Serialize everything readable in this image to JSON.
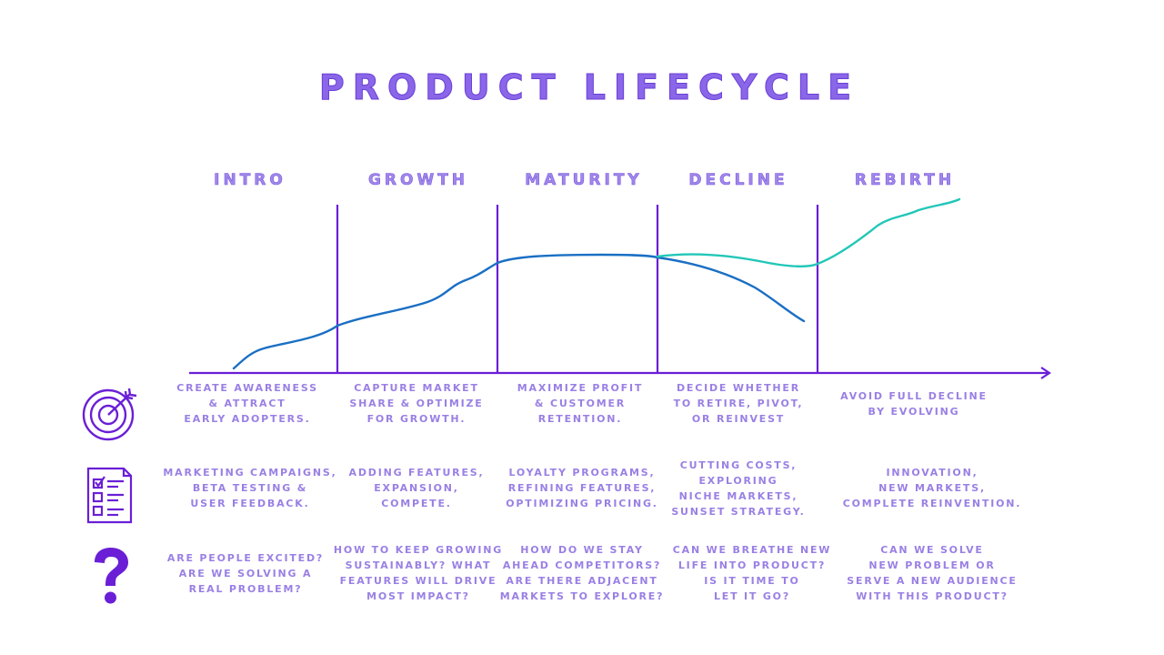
{
  "title": "PRODUCT LIFECYCLE",
  "colors": {
    "accent": "#6a1fd6",
    "text": "#9a80e4",
    "main_curve": "#1a6fc4",
    "rebirth_curve": "#22c7b8"
  },
  "stages": [
    {
      "name": "INTRO",
      "goal": "CREATE AWARENESS\n& ATTRACT\nEARLY ADOPTERS.",
      "actions": "MARKETING CAMPAIGNS,\nBETA TESTING &\nUSER FEEDBACK.",
      "questions": "ARE PEOPLE EXCITED?\nARE WE SOLVING A\nREAL PROBLEM?"
    },
    {
      "name": "GROWTH",
      "goal": "CAPTURE MARKET\nSHARE & OPTIMIZE\nFOR GROWTH.",
      "actions": "ADDING FEATURES,\nEXPANSION,\nCOMPETE.",
      "questions": "HOW TO KEEP GROWING\nSUSTAINABLY? WHAT\nFEATURES WILL DRIVE\nMOST IMPACT?"
    },
    {
      "name": "MATURITY",
      "goal": "MAXIMIZE PROFIT\n& CUSTOMER\nRETENTION.",
      "actions": "LOYALTY PROGRAMS,\nREFINING FEATURES,\nOPTIMIZING PRICING.",
      "questions": "HOW DO WE STAY\nAHEAD COMPETITORS?\nARE THERE ADJACENT\nMARKETS TO EXPLORE?"
    },
    {
      "name": "DECLINE",
      "goal": "DECIDE WHETHER\nTO RETIRE, PIVOT,\nOR REINVEST",
      "actions": "CUTTING COSTS,\nEXPLORING\nNICHE MARKETS,\nSUNSET STRATEGY.",
      "questions": "CAN WE BREATHE NEW\nLIFE INTO PRODUCT?\nIS IT TIME TO\nLET IT GO?"
    },
    {
      "name": "REBIRTH",
      "goal": "AVOID FULL DECLINE\nBY EVOLVING",
      "actions": "INNOVATION,\nNEW MARKETS,\nCOMPLETE REINVENTION.",
      "questions": "CAN WE SOLVE\nNEW PROBLEM OR\nSERVE A NEW AUDIENCE\nWITH THIS PRODUCT?"
    }
  ],
  "row_icons": [
    "target-icon",
    "checklist-icon",
    "question-mark-icon"
  ]
}
